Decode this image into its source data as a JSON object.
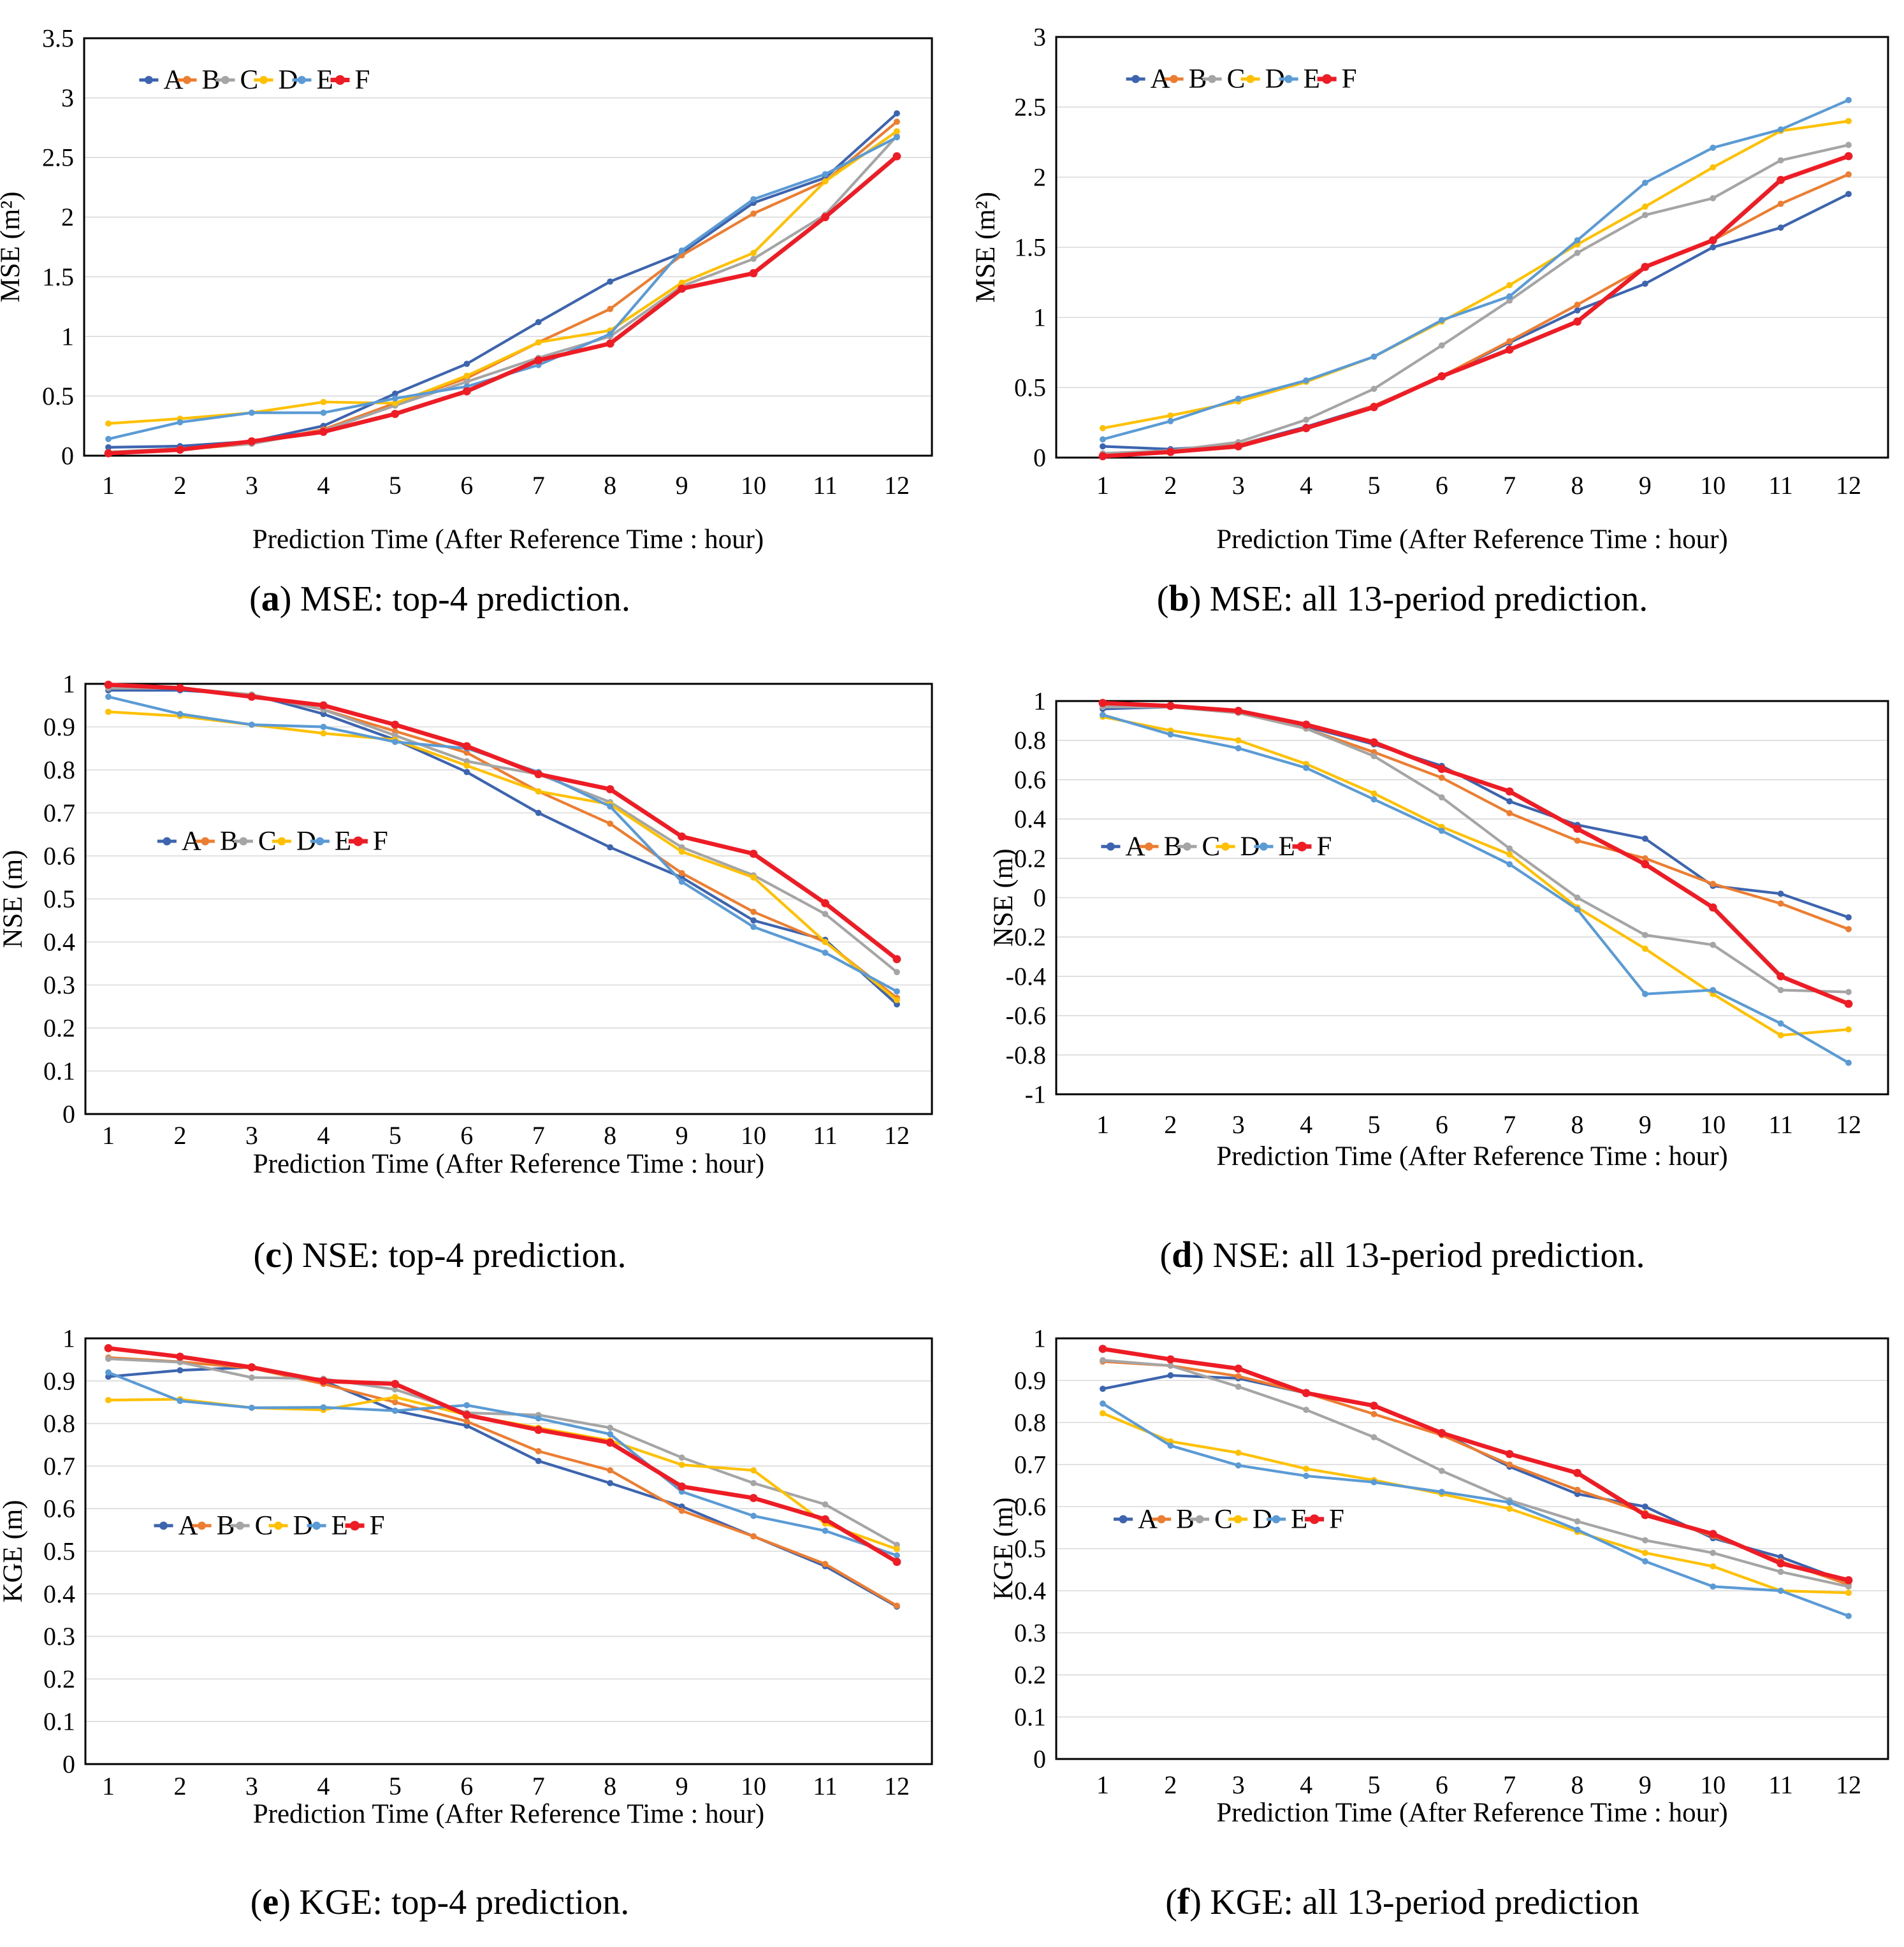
{
  "figure": {
    "background": "#FFFFFF",
    "grid_color": "#D9D9D9",
    "border_color": "#000000",
    "x_categories": [
      "1",
      "2",
      "3",
      "4",
      "5",
      "6",
      "7",
      "8",
      "9",
      "10",
      "11",
      "12"
    ],
    "series_names": [
      "A",
      "B",
      "C",
      "D",
      "E",
      "F"
    ],
    "palette": {
      "A": "#3D64AE",
      "B": "#ED7D31",
      "C": "#A5A5A5",
      "D": "#FFC000",
      "E": "#5B9BD5",
      "F": "#EE1D25"
    }
  },
  "chart_data": [
    {
      "id": "a",
      "type": "line",
      "paren_open": "(",
      "caption_letter": "a",
      "paren_close": ")",
      "caption_text": "MSE: top-4 prediction.",
      "xlabel": "Prediction Time (After Reference Time : hour)",
      "ylabel": "MSE (m²)",
      "categories": [
        "1",
        "2",
        "3",
        "4",
        "5",
        "6",
        "7",
        "8",
        "9",
        "10",
        "11",
        "12"
      ],
      "ymax": 3.5,
      "ymin": 0,
      "ystep": 0.5,
      "y_tick_labels": [
        "3.5",
        "3",
        "2.5",
        "2",
        "1.5",
        "1",
        "0.5",
        "0"
      ],
      "grid": true,
      "legend_position": "inside-top-left",
      "legend": {
        "x": 0.065,
        "y": 0.1
      },
      "series": [
        {
          "name": "A",
          "color": "#3D64AE",
          "values": [
            0.07,
            0.08,
            0.12,
            0.25,
            0.52,
            0.77,
            1.12,
            1.46,
            1.7,
            2.12,
            2.33,
            2.87
          ]
        },
        {
          "name": "B",
          "color": "#ED7D31",
          "values": [
            0.03,
            0.05,
            0.1,
            0.22,
            0.44,
            0.65,
            0.95,
            1.23,
            1.68,
            2.03,
            2.3,
            2.8
          ]
        },
        {
          "name": "C",
          "color": "#A5A5A5",
          "values": [
            0.03,
            0.06,
            0.1,
            0.21,
            0.42,
            0.62,
            0.82,
            1.0,
            1.42,
            1.65,
            2.02,
            2.68
          ]
        },
        {
          "name": "D",
          "color": "#FFC000",
          "values": [
            0.27,
            0.31,
            0.36,
            0.45,
            0.44,
            0.67,
            0.95,
            1.05,
            1.45,
            1.7,
            2.3,
            2.72
          ]
        },
        {
          "name": "E",
          "color": "#5B9BD5",
          "values": [
            0.14,
            0.28,
            0.36,
            0.36,
            0.48,
            0.58,
            0.76,
            1.02,
            1.72,
            2.15,
            2.36,
            2.67
          ]
        },
        {
          "name": "F",
          "color": "#EE1D25",
          "values": [
            0.02,
            0.05,
            0.12,
            0.2,
            0.35,
            0.54,
            0.8,
            0.94,
            1.4,
            1.53,
            2.0,
            2.51
          ],
          "emphasis": true
        }
      ]
    },
    {
      "id": "b",
      "type": "line",
      "paren_open": "(",
      "caption_letter": "b",
      "paren_close": ")",
      "caption_text": "MSE: all 13-period prediction.",
      "xlabel": "Prediction Time (After Reference Time : hour)",
      "ylabel": "MSE (m²)",
      "categories": [
        "1",
        "2",
        "3",
        "4",
        "5",
        "6",
        "7",
        "8",
        "9",
        "10",
        "11",
        "12"
      ],
      "ymax": 3,
      "ymin": 0,
      "ystep": 0.5,
      "y_tick_labels": [
        "3",
        "2.5",
        "2",
        "1.5",
        "1",
        "0.5",
        "0"
      ],
      "grid": true,
      "legend_position": "inside-top-left",
      "legend": {
        "x": 0.084,
        "y": 0.1
      },
      "series": [
        {
          "name": "A",
          "color": "#3D64AE",
          "values": [
            0.08,
            0.06,
            0.09,
            0.22,
            0.37,
            0.58,
            0.82,
            1.05,
            1.24,
            1.5,
            1.64,
            1.88
          ]
        },
        {
          "name": "B",
          "color": "#ED7D31",
          "values": [
            0.02,
            0.04,
            0.09,
            0.21,
            0.37,
            0.58,
            0.83,
            1.09,
            1.36,
            1.55,
            1.81,
            2.02
          ]
        },
        {
          "name": "C",
          "color": "#A5A5A5",
          "values": [
            0.03,
            0.05,
            0.11,
            0.27,
            0.49,
            0.8,
            1.12,
            1.46,
            1.73,
            1.85,
            2.12,
            2.23
          ]
        },
        {
          "name": "D",
          "color": "#FFC000",
          "values": [
            0.21,
            0.3,
            0.4,
            0.54,
            0.72,
            0.97,
            1.23,
            1.52,
            1.79,
            2.07,
            2.33,
            2.4
          ]
        },
        {
          "name": "E",
          "color": "#5B9BD5",
          "values": [
            0.13,
            0.26,
            0.42,
            0.55,
            0.72,
            0.98,
            1.15,
            1.55,
            1.96,
            2.21,
            2.34,
            2.55
          ]
        },
        {
          "name": "F",
          "color": "#EE1D25",
          "values": [
            0.01,
            0.04,
            0.08,
            0.21,
            0.36,
            0.58,
            0.77,
            0.97,
            1.36,
            1.55,
            1.98,
            2.15
          ],
          "emphasis": true
        }
      ]
    },
    {
      "id": "c",
      "type": "line",
      "paren_open": "(",
      "caption_letter": "c",
      "paren_close": ")",
      "caption_text": "NSE: top-4 prediction.",
      "xlabel": "Prediction Time (After Reference Time : hour)",
      "ylabel": "NSE (m)",
      "categories": [
        "1",
        "2",
        "3",
        "4",
        "5",
        "6",
        "7",
        "8",
        "9",
        "10",
        "11",
        "12"
      ],
      "ymax": 1,
      "ymin": 0,
      "ystep": 0.1,
      "y_tick_labels": [
        "1",
        "0.9",
        "0.8",
        "0.7",
        "0.6",
        "0.5",
        "0.4",
        "0.3",
        "0.2",
        "0.1",
        "0"
      ],
      "grid": true,
      "legend_position": "inside-middle-left",
      "legend": {
        "x": 0.085,
        "y": 0.366
      },
      "series": [
        {
          "name": "A",
          "color": "#3D64AE",
          "values": [
            0.985,
            0.985,
            0.975,
            0.93,
            0.87,
            0.795,
            0.7,
            0.62,
            0.55,
            0.45,
            0.405,
            0.255
          ]
        },
        {
          "name": "B",
          "color": "#ED7D31",
          "values": [
            0.99,
            0.99,
            0.975,
            0.94,
            0.89,
            0.84,
            0.75,
            0.675,
            0.56,
            0.47,
            0.4,
            0.27
          ]
        },
        {
          "name": "C",
          "color": "#A5A5A5",
          "values": [
            0.99,
            0.99,
            0.975,
            0.94,
            0.88,
            0.82,
            0.79,
            0.725,
            0.62,
            0.555,
            0.465,
            0.33
          ]
        },
        {
          "name": "D",
          "color": "#FFC000",
          "values": [
            0.935,
            0.925,
            0.905,
            0.885,
            0.87,
            0.81,
            0.75,
            0.72,
            0.61,
            0.55,
            0.4,
            0.265
          ]
        },
        {
          "name": "E",
          "color": "#5B9BD5",
          "values": [
            0.97,
            0.93,
            0.905,
            0.9,
            0.865,
            0.85,
            0.795,
            0.715,
            0.54,
            0.435,
            0.375,
            0.285
          ]
        },
        {
          "name": "F",
          "color": "#EE1D25",
          "values": [
            0.998,
            0.99,
            0.97,
            0.95,
            0.905,
            0.855,
            0.79,
            0.755,
            0.645,
            0.605,
            0.49,
            0.36
          ],
          "emphasis": true
        }
      ]
    },
    {
      "id": "d",
      "type": "line",
      "paren_open": "(",
      "caption_letter": "d",
      "paren_close": ")",
      "caption_text": "NSE: all 13-period prediction.",
      "xlabel": "Prediction Time (After Reference Time : hour)",
      "ylabel": "NSE (m)",
      "categories": [
        "1",
        "2",
        "3",
        "4",
        "5",
        "6",
        "7",
        "8",
        "9",
        "10",
        "11",
        "12"
      ],
      "ymax": 1,
      "ymin": -1,
      "ystep": 0.2,
      "y_tick_labels": [
        "1",
        "0.8",
        "0.6",
        "0.4",
        "0.2",
        "0",
        "-0.2",
        "-0.4",
        "-0.6",
        "-0.8",
        "-1"
      ],
      "grid": true,
      "legend_position": "inside-middle-left",
      "legend": {
        "x": 0.054,
        "y": 0.37
      },
      "series": [
        {
          "name": "A",
          "color": "#3D64AE",
          "values": [
            0.96,
            0.97,
            0.95,
            0.87,
            0.78,
            0.67,
            0.49,
            0.37,
            0.3,
            0.06,
            0.02,
            -0.1
          ]
        },
        {
          "name": "B",
          "color": "#ED7D31",
          "values": [
            0.98,
            0.97,
            0.94,
            0.86,
            0.74,
            0.61,
            0.43,
            0.29,
            0.2,
            0.07,
            -0.03,
            -0.16
          ]
        },
        {
          "name": "C",
          "color": "#A5A5A5",
          "values": [
            0.97,
            0.97,
            0.94,
            0.86,
            0.72,
            0.51,
            0.25,
            0.0,
            -0.19,
            -0.24,
            -0.47,
            -0.48
          ]
        },
        {
          "name": "D",
          "color": "#FFC000",
          "values": [
            0.92,
            0.85,
            0.8,
            0.68,
            0.53,
            0.36,
            0.22,
            -0.05,
            -0.26,
            -0.49,
            -0.7,
            -0.67
          ]
        },
        {
          "name": "E",
          "color": "#5B9BD5",
          "values": [
            0.93,
            0.83,
            0.76,
            0.66,
            0.5,
            0.34,
            0.17,
            -0.06,
            -0.49,
            -0.47,
            -0.64,
            -0.84
          ]
        },
        {
          "name": "F",
          "color": "#EE1D25",
          "values": [
            0.99,
            0.975,
            0.95,
            0.88,
            0.79,
            0.655,
            0.54,
            0.35,
            0.17,
            -0.05,
            -0.4,
            -0.54
          ],
          "emphasis": true
        }
      ]
    },
    {
      "id": "e",
      "type": "line",
      "paren_open": "(",
      "caption_letter": "e",
      "paren_close": ")",
      "caption_text": "KGE: top-4 prediction.",
      "xlabel": "Prediction Time (After Reference Time : hour)",
      "ylabel": "KGE (m)",
      "categories": [
        "1",
        "2",
        "3",
        "4",
        "5",
        "6",
        "7",
        "8",
        "9",
        "10",
        "11",
        "12"
      ],
      "ymax": 1,
      "ymin": 0,
      "ystep": 0.1,
      "y_tick_labels": [
        "1",
        "0.9",
        "0.8",
        "0.7",
        "0.6",
        "0.5",
        "0.4",
        "0.3",
        "0.2",
        "0.1",
        "0"
      ],
      "grid": true,
      "legend_position": "inside-middle-left",
      "legend": {
        "x": 0.081,
        "y": 0.44
      },
      "series": [
        {
          "name": "A",
          "color": "#3D64AE",
          "values": [
            0.91,
            0.925,
            0.932,
            0.9,
            0.83,
            0.795,
            0.712,
            0.66,
            0.605,
            0.535,
            0.465,
            0.37
          ]
        },
        {
          "name": "B",
          "color": "#ED7D31",
          "values": [
            0.955,
            0.945,
            0.93,
            0.893,
            0.85,
            0.805,
            0.735,
            0.69,
            0.595,
            0.535,
            0.47,
            0.372
          ]
        },
        {
          "name": "C",
          "color": "#A5A5A5",
          "values": [
            0.952,
            0.944,
            0.908,
            0.905,
            0.88,
            0.825,
            0.82,
            0.79,
            0.72,
            0.66,
            0.61,
            0.515
          ]
        },
        {
          "name": "D",
          "color": "#FFC000",
          "values": [
            0.855,
            0.857,
            0.837,
            0.832,
            0.862,
            0.82,
            0.79,
            0.76,
            0.703,
            0.69,
            0.565,
            0.505
          ]
        },
        {
          "name": "E",
          "color": "#5B9BD5",
          "values": [
            0.92,
            0.853,
            0.837,
            0.838,
            0.83,
            0.843,
            0.812,
            0.775,
            0.64,
            0.583,
            0.548,
            0.49
          ]
        },
        {
          "name": "F",
          "color": "#EE1D25",
          "values": [
            0.977,
            0.957,
            0.932,
            0.9,
            0.893,
            0.82,
            0.785,
            0.755,
            0.652,
            0.625,
            0.575,
            0.475
          ],
          "emphasis": true
        }
      ]
    },
    {
      "id": "f",
      "type": "line",
      "paren_open": "(",
      "caption_letter": "f",
      "paren_close": ")",
      "caption_text": "KGE: all 13-period prediction",
      "xlabel": "Prediction Time (After Reference Time : hour)",
      "ylabel": "KGE (m)",
      "categories": [
        "1",
        "2",
        "3",
        "4",
        "5",
        "6",
        "7",
        "8",
        "9",
        "10",
        "11",
        "12"
      ],
      "ymax": 1,
      "ymin": 0,
      "ystep": 0.1,
      "y_tick_labels": [
        "1",
        "0.9",
        "0.8",
        "0.7",
        "0.6",
        "0.5",
        "0.4",
        "0.3",
        "0.2",
        "0.1",
        "0"
      ],
      "grid": true,
      "legend_position": "inside-middle-left",
      "legend": {
        "x": 0.069,
        "y": 0.43
      },
      "series": [
        {
          "name": "A",
          "color": "#3D64AE",
          "values": [
            0.88,
            0.912,
            0.905,
            0.87,
            0.84,
            0.775,
            0.695,
            0.63,
            0.6,
            0.525,
            0.48,
            0.42
          ]
        },
        {
          "name": "B",
          "color": "#ED7D31",
          "values": [
            0.945,
            0.935,
            0.91,
            0.87,
            0.82,
            0.77,
            0.7,
            0.64,
            0.585,
            0.53,
            0.47,
            0.415
          ]
        },
        {
          "name": "C",
          "color": "#A5A5A5",
          "values": [
            0.948,
            0.935,
            0.885,
            0.83,
            0.765,
            0.685,
            0.615,
            0.565,
            0.52,
            0.49,
            0.445,
            0.41
          ]
        },
        {
          "name": "D",
          "color": "#FFC000",
          "values": [
            0.822,
            0.755,
            0.728,
            0.69,
            0.663,
            0.63,
            0.595,
            0.54,
            0.49,
            0.458,
            0.4,
            0.395
          ]
        },
        {
          "name": "E",
          "color": "#5B9BD5",
          "values": [
            0.845,
            0.745,
            0.698,
            0.673,
            0.658,
            0.635,
            0.61,
            0.545,
            0.47,
            0.41,
            0.4,
            0.34
          ]
        },
        {
          "name": "F",
          "color": "#EE1D25",
          "values": [
            0.975,
            0.95,
            0.928,
            0.87,
            0.84,
            0.775,
            0.725,
            0.68,
            0.58,
            0.535,
            0.465,
            0.425
          ],
          "emphasis": true
        }
      ]
    }
  ]
}
